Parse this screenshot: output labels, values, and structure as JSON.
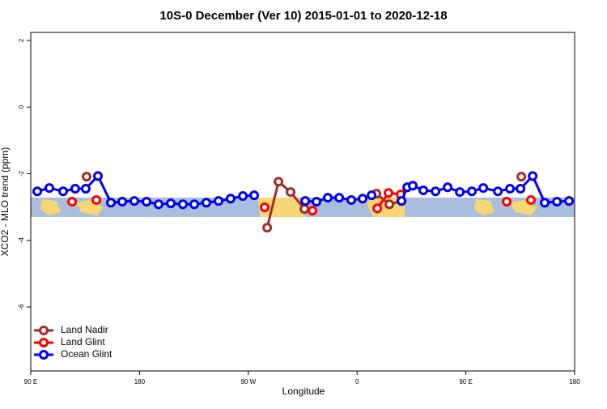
{
  "chart_data": {
    "type": "line",
    "title": "10S-0 December (Ver 10)   2015-01-01 to 2020-12-18",
    "x_label": "Longitude",
    "y_label": "XCO2 - MLO trend (ppm)",
    "xlim": [
      90,
      540
    ],
    "xticks": [
      {
        "value": 90,
        "label": "90 E"
      },
      {
        "value": 180,
        "label": "180"
      },
      {
        "value": 270,
        "label": "90 W"
      },
      {
        "value": 360,
        "label": "0"
      },
      {
        "value": 450,
        "label": "90 E"
      },
      {
        "value": 540,
        "label": "180"
      }
    ],
    "ylim": [
      -7.92,
      2.24
    ],
    "yticks": [
      2,
      0,
      -2,
      -4,
      -6
    ],
    "legend": "bottom-left",
    "series": [
      {
        "name": "Land Nadir",
        "color": "#a52a2a",
        "x": [
          136.2,
          null,
          285.6,
          295.0,
          305.0,
          316.4,
          null,
          376.0,
          386.7,
          396.8,
          null,
          495.9
        ],
        "values": [
          -2.09,
          null,
          -3.62,
          -2.24,
          -2.55,
          -3.06,
          null,
          -2.6,
          -2.92,
          -2.82,
          null,
          -2.09
        ]
      },
      {
        "name": "Land Glint",
        "color": "#ff0000",
        "x": [
          124.2,
          null,
          144.3,
          null,
          283.6,
          null,
          323.1,
          null,
          376.7,
          386.0,
          396.1,
          401.5,
          null,
          483.8,
          null,
          503.9
        ],
        "values": [
          -2.84,
          null,
          -2.79,
          null,
          -3.01,
          null,
          -3.11,
          null,
          -3.04,
          -2.58,
          -2.62,
          -2.41,
          null,
          -2.84,
          null,
          -2.79
        ]
      },
      {
        "name": "Ocean Glint",
        "color": "#0000ee",
        "x": [
          95.4,
          105.4,
          116.8,
          126.8,
          135.5,
          145.6,
          156.3,
          165.7,
          175.7,
          185.8,
          195.8,
          205.9,
          215.9,
          225.3,
          235.3,
          245.4,
          255.4,
          265.5,
          274.9,
          null,
          317.1,
          326.4,
          335.8,
          345.2,
          355.2,
          364.6,
          372.0,
          null,
          396.8,
          401.5,
          406.1,
          414.8,
          424.9,
          434.9,
          445.0,
          455.0,
          464.4,
          476.5,
          486.5,
          495.2,
          505.3,
          515.3,
          525.4,
          535.4
        ],
        "values": [
          -2.53,
          -2.43,
          -2.53,
          -2.45,
          -2.45,
          -2.07,
          -2.87,
          -2.84,
          -2.82,
          -2.84,
          -2.92,
          -2.89,
          -2.92,
          -2.92,
          -2.87,
          -2.82,
          -2.75,
          -2.67,
          -2.65,
          null,
          -2.82,
          -2.84,
          -2.72,
          -2.72,
          -2.79,
          -2.75,
          -2.65,
          null,
          -2.82,
          -2.41,
          -2.36,
          -2.5,
          -2.53,
          -2.41,
          -2.55,
          -2.53,
          -2.43,
          -2.53,
          -2.45,
          -2.45,
          -2.07,
          -2.87,
          -2.84,
          -2.82
        ]
      }
    ]
  }
}
